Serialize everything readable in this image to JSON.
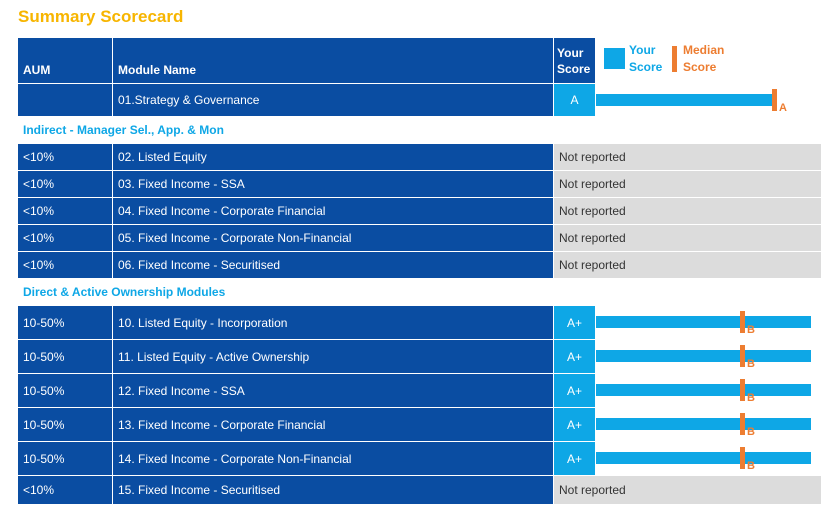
{
  "title": "Summary Scorecard",
  "header": {
    "aum": "AUM",
    "module_name": "Module Name",
    "your_score": "Your Score",
    "legend_your_score": "Your Score",
    "legend_median_score": "Median Score"
  },
  "colors": {
    "title": "#f7b500",
    "row_blue": "#0a4da2",
    "score_cyan": "#0ea7e6",
    "median_orange": "#ed7d31",
    "not_reported_gray": "#dcdcdc"
  },
  "rows": [
    {
      "type": "module",
      "aum": "",
      "module": "01.Strategy & Governance",
      "score": "A",
      "median": "A",
      "your_fraction": 0.82,
      "median_fraction": 0.82
    },
    {
      "type": "section",
      "label": "Indirect - Manager Sel., App. & Mon"
    },
    {
      "type": "module",
      "aum": "<10%",
      "module": "02. Listed Equity",
      "status": "Not reported"
    },
    {
      "type": "module",
      "aum": "<10%",
      "module": "03. Fixed Income - SSA",
      "status": "Not reported"
    },
    {
      "type": "module",
      "aum": "<10%",
      "module": "04. Fixed Income - Corporate Financial",
      "status": "Not reported"
    },
    {
      "type": "module",
      "aum": "<10%",
      "module": "05. Fixed Income - Corporate Non-Financial",
      "status": "Not reported"
    },
    {
      "type": "module",
      "aum": "<10%",
      "module": "06. Fixed Income - Securitised",
      "status": "Not reported"
    },
    {
      "type": "section",
      "label": "Direct & Active Ownership Modules"
    },
    {
      "type": "module",
      "aum": "10-50%",
      "module": "10. Listed Equity - Incorporation",
      "score": "A+",
      "median": "B",
      "your_fraction": 1.0,
      "median_fraction": 0.67
    },
    {
      "type": "module",
      "aum": "10-50%",
      "module": "11. Listed Equity - Active Ownership",
      "score": "A+",
      "median": "B",
      "your_fraction": 1.0,
      "median_fraction": 0.67
    },
    {
      "type": "module",
      "aum": "10-50%",
      "module": "12. Fixed Income - SSA",
      "score": "A+",
      "median": "B",
      "your_fraction": 1.0,
      "median_fraction": 0.67
    },
    {
      "type": "module",
      "aum": "10-50%",
      "module": "13. Fixed Income - Corporate Financial",
      "score": "A+",
      "median": "B",
      "your_fraction": 1.0,
      "median_fraction": 0.67
    },
    {
      "type": "module",
      "aum": "10-50%",
      "module": "14. Fixed Income - Corporate Non-Financial",
      "score": "A+",
      "median": "B",
      "your_fraction": 1.0,
      "median_fraction": 0.67
    },
    {
      "type": "module",
      "aum": "<10%",
      "module": "15. Fixed Income - Securitised",
      "status": "Not reported"
    }
  ]
}
